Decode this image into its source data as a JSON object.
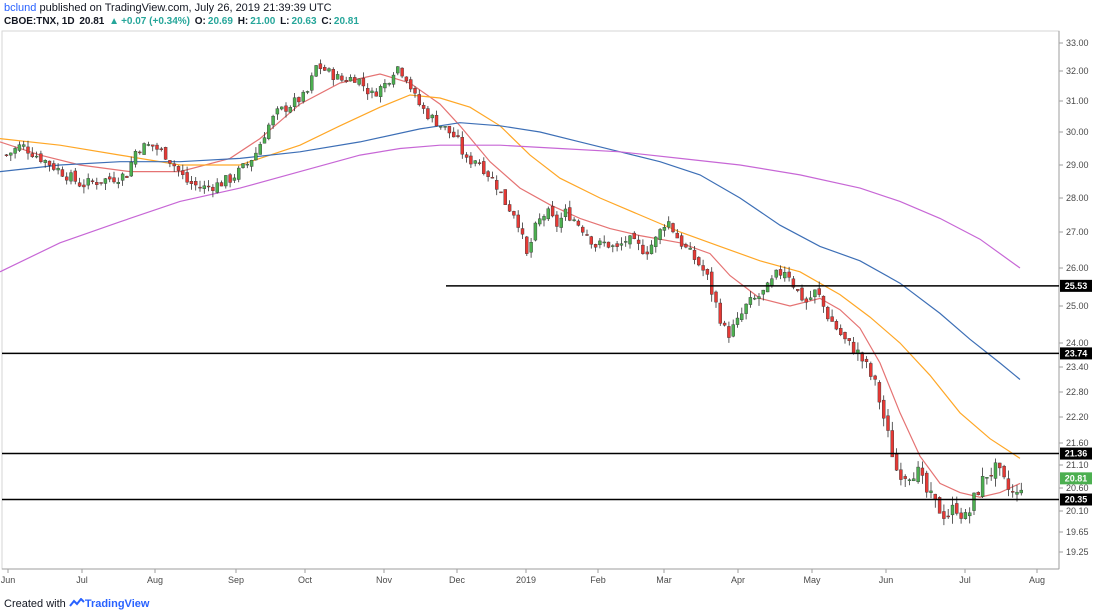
{
  "header": {
    "author": "bclund",
    "published": "published on TradingView.com, July 26, 2019 21:39:39 UTC",
    "symbol": "CBOE:TNX, 1D",
    "last": "20.81",
    "change_arrow": "▲",
    "change": "+0.07 (+0.34%)",
    "o_label": "O:",
    "o": "20.69",
    "h_label": "H:",
    "h": "21.00",
    "l_label": "L:",
    "l": "20.63",
    "c_label": "C:",
    "c": "20.81"
  },
  "footer": {
    "created_with": "Created with",
    "brand": "TradingView",
    "logo_icon": "tradingview-logo-icon"
  },
  "colors": {
    "up": "#4caf50",
    "down": "#e53935",
    "ma20": "#e57373",
    "ma50": "#ffa726",
    "ma100": "#3d6fb6",
    "ma200": "#c767d6",
    "level": "#000000",
    "last_price": "#4caf50"
  },
  "chart_data": {
    "type": "candlestick",
    "title": "",
    "xlabel": "",
    "ylabel": "",
    "ylim": [
      19.0,
      33.2
    ],
    "x_ticks": [
      "Jun",
      "Jul",
      "Aug",
      "Sep",
      "Oct",
      "Nov",
      "Dec",
      "2019",
      "Feb",
      "Mar",
      "Apr",
      "May",
      "Jun",
      "Jul",
      "Aug"
    ],
    "y_ticks": [
      "33.00",
      "32.00",
      "31.00",
      "30.00",
      "29.00",
      "28.00",
      "27.00",
      "26.00",
      "25.00",
      "24.00",
      "23.40",
      "22.80",
      "22.20",
      "21.60",
      "21.10",
      "20.60",
      "20.10",
      "19.65",
      "19.25"
    ],
    "y_scale": "log",
    "horizontal_levels": [
      {
        "value": 25.53,
        "label": "25.53",
        "x_start": "2018-12-20"
      },
      {
        "value": 23.74,
        "label": "23.74",
        "x_start": "2018-05-31"
      },
      {
        "value": 21.36,
        "label": "21.36",
        "x_start": "2018-05-31"
      },
      {
        "value": 20.35,
        "label": "20.35",
        "x_start": "2018-05-31"
      }
    ],
    "last_price": {
      "value": 20.81,
      "label": "20.81"
    },
    "moving_averages": [
      {
        "color": "#e57373",
        "points": [
          [
            0,
            29.7
          ],
          [
            40,
            29.3
          ],
          [
            80,
            29.0
          ],
          [
            130,
            28.8
          ],
          [
            180,
            28.8
          ],
          [
            230,
            29.2
          ],
          [
            260,
            29.8
          ],
          [
            300,
            30.9
          ],
          [
            340,
            31.6
          ],
          [
            380,
            31.9
          ],
          [
            410,
            31.6
          ],
          [
            440,
            30.9
          ],
          [
            460,
            30.2
          ],
          [
            490,
            29.1
          ],
          [
            520,
            28.3
          ],
          [
            550,
            27.8
          ],
          [
            580,
            27.4
          ],
          [
            610,
            27.1
          ],
          [
            640,
            26.9
          ],
          [
            680,
            26.7
          ],
          [
            710,
            26.4
          ],
          [
            730,
            25.8
          ],
          [
            760,
            25.2
          ],
          [
            790,
            25.0
          ],
          [
            820,
            25.2
          ],
          [
            840,
            24.9
          ],
          [
            860,
            24.4
          ],
          [
            880,
            23.5
          ],
          [
            900,
            22.3
          ],
          [
            920,
            21.3
          ],
          [
            940,
            20.7
          ],
          [
            960,
            20.5
          ],
          [
            980,
            20.4
          ],
          [
            1000,
            20.5
          ],
          [
            1010,
            20.6
          ],
          [
            1020,
            20.7
          ]
        ]
      },
      {
        "color": "#ffa726",
        "points": [
          [
            0,
            29.8
          ],
          [
            60,
            29.6
          ],
          [
            120,
            29.3
          ],
          [
            180,
            29.0
          ],
          [
            240,
            29.0
          ],
          [
            300,
            29.6
          ],
          [
            340,
            30.2
          ],
          [
            380,
            30.8
          ],
          [
            410,
            31.2
          ],
          [
            440,
            31.1
          ],
          [
            470,
            30.8
          ],
          [
            500,
            30.2
          ],
          [
            530,
            29.3
          ],
          [
            560,
            28.6
          ],
          [
            600,
            28.0
          ],
          [
            640,
            27.5
          ],
          [
            680,
            27.0
          ],
          [
            720,
            26.6
          ],
          [
            760,
            26.2
          ],
          [
            800,
            25.9
          ],
          [
            840,
            25.3
          ],
          [
            870,
            24.7
          ],
          [
            900,
            24.0
          ],
          [
            930,
            23.2
          ],
          [
            960,
            22.3
          ],
          [
            990,
            21.7
          ],
          [
            1010,
            21.4
          ],
          [
            1020,
            21.25
          ]
        ]
      },
      {
        "color": "#3d6fb6",
        "points": [
          [
            0,
            28.8
          ],
          [
            60,
            29.0
          ],
          [
            120,
            29.1
          ],
          [
            180,
            29.1
          ],
          [
            240,
            29.2
          ],
          [
            300,
            29.4
          ],
          [
            360,
            29.7
          ],
          [
            420,
            30.1
          ],
          [
            460,
            30.3
          ],
          [
            500,
            30.2
          ],
          [
            540,
            30.0
          ],
          [
            580,
            29.7
          ],
          [
            620,
            29.4
          ],
          [
            660,
            29.1
          ],
          [
            700,
            28.7
          ],
          [
            740,
            28.0
          ],
          [
            780,
            27.2
          ],
          [
            820,
            26.6
          ],
          [
            860,
            26.2
          ],
          [
            900,
            25.6
          ],
          [
            940,
            24.8
          ],
          [
            970,
            24.1
          ],
          [
            1000,
            23.5
          ],
          [
            1020,
            23.1
          ]
        ]
      },
      {
        "color": "#c767d6",
        "points": [
          [
            0,
            25.9
          ],
          [
            60,
            26.7
          ],
          [
            120,
            27.3
          ],
          [
            180,
            27.9
          ],
          [
            240,
            28.3
          ],
          [
            300,
            28.8
          ],
          [
            360,
            29.3
          ],
          [
            400,
            29.5
          ],
          [
            440,
            29.6
          ],
          [
            500,
            29.6
          ],
          [
            560,
            29.5
          ],
          [
            620,
            29.4
          ],
          [
            680,
            29.2
          ],
          [
            740,
            29.0
          ],
          [
            800,
            28.7
          ],
          [
            860,
            28.3
          ],
          [
            900,
            27.9
          ],
          [
            940,
            27.4
          ],
          [
            980,
            26.8
          ],
          [
            1020,
            26.0
          ]
        ]
      }
    ],
    "candles_note": "daily OHLC series rendered as candlesticks (approximated path of closes)",
    "close_path": [
      [
        5,
        29.3
      ],
      [
        20,
        29.6
      ],
      [
        35,
        29.3
      ],
      [
        50,
        29.0
      ],
      [
        65,
        28.7
      ],
      [
        80,
        28.4
      ],
      [
        95,
        28.5
      ],
      [
        110,
        28.6
      ],
      [
        125,
        28.7
      ],
      [
        135,
        29.5
      ],
      [
        150,
        29.6
      ],
      [
        165,
        29.3
      ],
      [
        175,
        28.9
      ],
      [
        185,
        28.5
      ],
      [
        200,
        28.3
      ],
      [
        215,
        28.4
      ],
      [
        230,
        28.6
      ],
      [
        245,
        29.0
      ],
      [
        255,
        29.4
      ],
      [
        265,
        30.1
      ],
      [
        275,
        30.6
      ],
      [
        290,
        30.9
      ],
      [
        305,
        31.2
      ],
      [
        315,
        32.2
      ],
      [
        325,
        32.0
      ],
      [
        340,
        31.7
      ],
      [
        355,
        31.8
      ],
      [
        370,
        31.2
      ],
      [
        385,
        31.6
      ],
      [
        395,
        32.2
      ],
      [
        405,
        31.8
      ],
      [
        415,
        31.0
      ],
      [
        425,
        30.6
      ],
      [
        440,
        30.2
      ],
      [
        455,
        29.8
      ],
      [
        465,
        29.1
      ],
      [
        475,
        29.2
      ],
      [
        485,
        28.8
      ],
      [
        495,
        28.4
      ],
      [
        505,
        27.8
      ],
      [
        515,
        27.5
      ],
      [
        525,
        26.3
      ],
      [
        535,
        27.2
      ],
      [
        545,
        27.6
      ],
      [
        555,
        27.2
      ],
      [
        565,
        27.6
      ],
      [
        575,
        27.3
      ],
      [
        585,
        27.0
      ],
      [
        595,
        26.6
      ],
      [
        605,
        26.7
      ],
      [
        615,
        26.5
      ],
      [
        625,
        26.8
      ],
      [
        635,
        26.6
      ],
      [
        645,
        26.5
      ],
      [
        655,
        26.8
      ],
      [
        665,
        27.4
      ],
      [
        675,
        26.9
      ],
      [
        685,
        26.5
      ],
      [
        695,
        26.2
      ],
      [
        705,
        25.8
      ],
      [
        715,
        25.0
      ],
      [
        725,
        24.2
      ],
      [
        735,
        24.5
      ],
      [
        745,
        25.0
      ],
      [
        755,
        25.2
      ],
      [
        765,
        25.4
      ],
      [
        775,
        25.8
      ],
      [
        785,
        26.0
      ],
      [
        795,
        25.4
      ],
      [
        805,
        25.1
      ],
      [
        815,
        25.4
      ],
      [
        825,
        24.8
      ],
      [
        835,
        24.4
      ],
      [
        845,
        24.0
      ],
      [
        855,
        23.8
      ],
      [
        865,
        23.4
      ],
      [
        875,
        22.9
      ],
      [
        885,
        21.9
      ],
      [
        895,
        21.0
      ],
      [
        905,
        20.9
      ],
      [
        915,
        21.0
      ],
      [
        925,
        20.5
      ],
      [
        935,
        20.2
      ],
      [
        945,
        20.0
      ],
      [
        955,
        20.2
      ],
      [
        965,
        19.9
      ],
      [
        975,
        20.5
      ],
      [
        985,
        20.9
      ],
      [
        995,
        21.0
      ],
      [
        1005,
        20.6
      ],
      [
        1015,
        20.4
      ],
      [
        1022,
        20.81
      ]
    ]
  }
}
